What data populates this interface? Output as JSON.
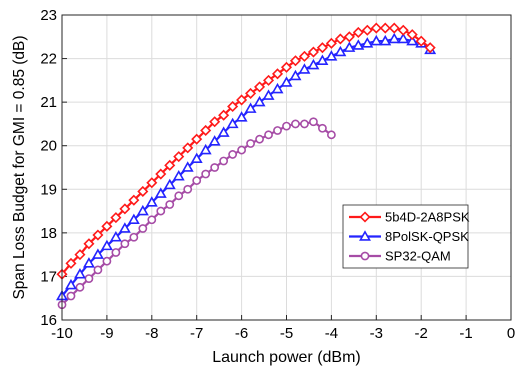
{
  "chart_data": {
    "type": "line",
    "xlabel": "Launch power (dBm)",
    "ylabel": "Span Loss Budget for GMI = 0.85 (dB)",
    "xlim": [
      -10,
      0
    ],
    "ylim": [
      16,
      23
    ],
    "x_ticks": [
      -10,
      -9,
      -8,
      -7,
      -6,
      -5,
      -4,
      -3,
      -2,
      -1,
      0
    ],
    "y_ticks": [
      16,
      17,
      18,
      19,
      20,
      21,
      22,
      23
    ],
    "grid": true,
    "legend_position": "lower-right",
    "series": [
      {
        "name": "5b4D-2A8PSK",
        "color": "#ff1a1a",
        "marker": "diamond",
        "x": [
          -10.0,
          -9.8,
          -9.6,
          -9.4,
          -9.2,
          -9.0,
          -8.8,
          -8.6,
          -8.4,
          -8.2,
          -8.0,
          -7.8,
          -7.6,
          -7.4,
          -7.2,
          -7.0,
          -6.8,
          -6.6,
          -6.4,
          -6.2,
          -6.0,
          -5.8,
          -5.6,
          -5.4,
          -5.2,
          -5.0,
          -4.8,
          -4.6,
          -4.4,
          -4.2,
          -4.0,
          -3.8,
          -3.6,
          -3.4,
          -3.2,
          -3.0,
          -2.8,
          -2.6,
          -2.4,
          -2.2,
          -2.0,
          -1.8
        ],
        "y": [
          17.05,
          17.3,
          17.5,
          17.75,
          17.95,
          18.15,
          18.35,
          18.55,
          18.75,
          18.95,
          19.15,
          19.35,
          19.55,
          19.75,
          19.95,
          20.15,
          20.35,
          20.55,
          20.7,
          20.9,
          21.05,
          21.2,
          21.35,
          21.5,
          21.65,
          21.8,
          21.95,
          22.05,
          22.15,
          22.25,
          22.35,
          22.45,
          22.5,
          22.6,
          22.65,
          22.7,
          22.7,
          22.7,
          22.65,
          22.55,
          22.4,
          22.25
        ]
      },
      {
        "name": "8PolSK-QPSK",
        "color": "#2424ff",
        "marker": "triangle",
        "x": [
          -10.0,
          -9.8,
          -9.6,
          -9.4,
          -9.2,
          -9.0,
          -8.8,
          -8.6,
          -8.4,
          -8.2,
          -8.0,
          -7.8,
          -7.6,
          -7.4,
          -7.2,
          -7.0,
          -6.8,
          -6.6,
          -6.4,
          -6.2,
          -6.0,
          -5.8,
          -5.6,
          -5.4,
          -5.2,
          -5.0,
          -4.8,
          -4.6,
          -4.4,
          -4.2,
          -4.0,
          -3.8,
          -3.6,
          -3.4,
          -3.2,
          -3.0,
          -2.8,
          -2.6,
          -2.4,
          -2.2,
          -2.0,
          -1.8
        ],
        "y": [
          16.55,
          16.8,
          17.05,
          17.3,
          17.5,
          17.7,
          17.9,
          18.1,
          18.3,
          18.5,
          18.7,
          18.9,
          19.1,
          19.3,
          19.5,
          19.7,
          19.9,
          20.1,
          20.3,
          20.5,
          20.65,
          20.85,
          21.0,
          21.15,
          21.3,
          21.45,
          21.6,
          21.75,
          21.85,
          21.95,
          22.05,
          22.15,
          22.25,
          22.3,
          22.35,
          22.4,
          22.4,
          22.45,
          22.45,
          22.4,
          22.35,
          22.2
        ]
      },
      {
        "name": "SP32-QAM",
        "color": "#a64ca6",
        "marker": "circle",
        "x": [
          -10.0,
          -9.8,
          -9.6,
          -9.4,
          -9.2,
          -9.0,
          -8.8,
          -8.6,
          -8.4,
          -8.2,
          -8.0,
          -7.8,
          -7.6,
          -7.4,
          -7.2,
          -7.0,
          -6.8,
          -6.6,
          -6.4,
          -6.2,
          -6.0,
          -5.8,
          -5.6,
          -5.4,
          -5.2,
          -5.0,
          -4.8,
          -4.6,
          -4.4,
          -4.2,
          -4.0
        ],
        "y": [
          16.35,
          16.55,
          16.75,
          16.95,
          17.15,
          17.35,
          17.55,
          17.75,
          17.9,
          18.1,
          18.3,
          18.5,
          18.65,
          18.85,
          19.0,
          19.2,
          19.35,
          19.5,
          19.65,
          19.8,
          19.9,
          20.05,
          20.15,
          20.25,
          20.35,
          20.45,
          20.5,
          20.5,
          20.55,
          20.4,
          20.25
        ]
      }
    ]
  }
}
